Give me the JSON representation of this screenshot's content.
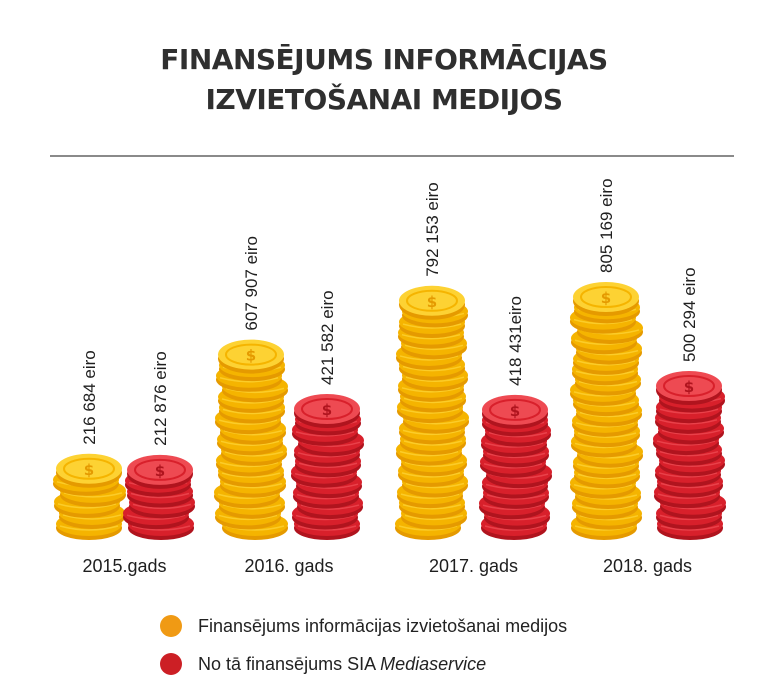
{
  "title": {
    "line1": "FINANSĒJUMS INFORMĀCIJAS",
    "line2": "IZVIETOŠANAI MEDIJOS"
  },
  "colors": {
    "gold": "#f5b400",
    "gold_light": "#fdd233",
    "gold_dark": "#e59a00",
    "red": "#d8202b",
    "red_light": "#ee4a52",
    "red_dark": "#b0141e",
    "legend_gold": "#f09a14",
    "legend_red": "#cc1f25"
  },
  "legend": {
    "item1": "Finansējums informācijas izvietošanai medijos",
    "item2_prefix": "No tā finansējums SIA ",
    "item2_italic": "Mediaservice"
  },
  "chart_data": {
    "type": "bar",
    "categories": [
      "2015.gads",
      "2016. gads",
      "2017. gads",
      "2018. gads"
    ],
    "series": [
      {
        "name": "Finansējums informācijas izvietošanai medijos",
        "values": [
          216684,
          607907,
          792153,
          805169
        ],
        "labels": [
          "216 684 eiro",
          "607 907 eiro",
          "792 153 eiro",
          "805 169 eiro"
        ]
      },
      {
        "name": "No tā finansējums SIA Mediaservice",
        "values": [
          212876,
          421582,
          418431,
          500294
        ],
        "labels": [
          "212 876 eiro",
          "421 582 eiro",
          "418 431eiro",
          "500 294 eiro"
        ]
      }
    ],
    "unit": "eiro",
    "ylim": [
      0,
      900000
    ],
    "grid": false,
    "legend_position": "bottom-left",
    "mark_style": "stacked coins"
  }
}
